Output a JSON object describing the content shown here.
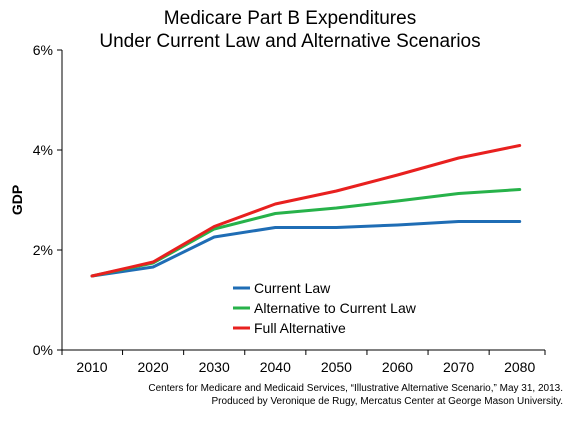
{
  "chart_data": {
    "type": "line",
    "title": "Medicare Part B Expenditures",
    "subtitle": "Under Current Law and Alternative Scenarios",
    "xlabel": "",
    "ylabel": "GDP",
    "x": [
      "2010",
      "2020",
      "2030",
      "2040",
      "2050",
      "2060",
      "2070",
      "2080"
    ],
    "y_ticks": [
      "0%",
      "2%",
      "4%",
      "6%"
    ],
    "ylim": [
      0,
      6
    ],
    "grid": false,
    "legend_position": "center-left",
    "series": [
      {
        "name": "Current Law",
        "color": "#1f6db5",
        "values": [
          1.48,
          1.66,
          2.26,
          2.45,
          2.45,
          2.5,
          2.57,
          2.57
        ]
      },
      {
        "name": "Alternative to Current Law",
        "color": "#27b24a",
        "values": [
          1.48,
          1.74,
          2.42,
          2.73,
          2.84,
          2.98,
          3.13,
          3.21
        ]
      },
      {
        "name": "Full Alternative",
        "color": "#e8201f",
        "values": [
          1.48,
          1.76,
          2.47,
          2.92,
          3.18,
          3.5,
          3.84,
          4.09
        ]
      }
    ]
  },
  "source": {
    "line1": "Centers for Medicare and Medicaid Services, “Illustrative Alternative Scenario,” May 31, 2013.",
    "line2": "Produced by Veronique de Rugy, Mercatus Center at George Mason University."
  }
}
